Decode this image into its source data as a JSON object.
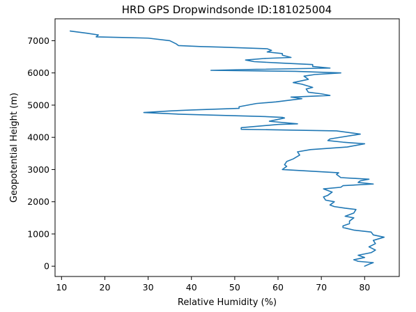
{
  "chart_data": {
    "type": "line",
    "title": "HRD GPS Dropwindsonde ID:181025004",
    "xlabel": "Relative Humidity (%)",
    "ylabel": "Geopotential Height (m)",
    "xlim": [
      8.5,
      88
    ],
    "ylim": [
      -320,
      7680
    ],
    "xticks": [
      10,
      20,
      30,
      40,
      50,
      60,
      70,
      80
    ],
    "yticks": [
      0,
      1000,
      2000,
      3000,
      4000,
      5000,
      6000,
      7000
    ],
    "grid": false,
    "line_color": "#1f77b4",
    "series": [
      {
        "points": [
          [
            80,
            0
          ],
          [
            81,
            60
          ],
          [
            82,
            110
          ],
          [
            78.5,
            150
          ],
          [
            77.5,
            200
          ],
          [
            80,
            270
          ],
          [
            78.5,
            340
          ],
          [
            81.5,
            420
          ],
          [
            82.5,
            500
          ],
          [
            81,
            600
          ],
          [
            82.5,
            700
          ],
          [
            82,
            800
          ],
          [
            84.5,
            900
          ],
          [
            82,
            970
          ],
          [
            81.5,
            1060
          ],
          [
            77.5,
            1120
          ],
          [
            75,
            1200
          ],
          [
            75,
            1250
          ],
          [
            76.5,
            1320
          ],
          [
            76.5,
            1400
          ],
          [
            77.5,
            1500
          ],
          [
            75.5,
            1550
          ],
          [
            77.5,
            1650
          ],
          [
            78,
            1760
          ],
          [
            75.5,
            1800
          ],
          [
            73,
            1850
          ],
          [
            72,
            1900
          ],
          [
            73,
            2000
          ],
          [
            71,
            2050
          ],
          [
            70.5,
            2150
          ],
          [
            71.5,
            2200
          ],
          [
            72.5,
            2300
          ],
          [
            70.5,
            2400
          ],
          [
            74.5,
            2450
          ],
          [
            75,
            2500
          ],
          [
            82,
            2550
          ],
          [
            78.5,
            2600
          ],
          [
            79,
            2650
          ],
          [
            81,
            2700
          ],
          [
            74.5,
            2750
          ],
          [
            73.5,
            2850
          ],
          [
            74,
            2900
          ],
          [
            61,
            3000
          ],
          [
            62,
            3100
          ],
          [
            61.5,
            3150
          ],
          [
            62,
            3250
          ],
          [
            63.5,
            3330
          ],
          [
            65,
            3450
          ],
          [
            64.5,
            3550
          ],
          [
            67.5,
            3620
          ],
          [
            76,
            3700
          ],
          [
            80,
            3800
          ],
          [
            75,
            3850
          ],
          [
            71.5,
            3900
          ],
          [
            72,
            3950
          ],
          [
            79,
            4100
          ],
          [
            73.5,
            4200
          ],
          [
            51.5,
            4250
          ],
          [
            51.5,
            4300
          ],
          [
            60,
            4400
          ],
          [
            64.5,
            4420
          ],
          [
            59.5,
            4480
          ],
          [
            58,
            4500
          ],
          [
            61.5,
            4600
          ],
          [
            61,
            4620
          ],
          [
            56,
            4650
          ],
          [
            37,
            4720
          ],
          [
            29,
            4770
          ],
          [
            35,
            4820
          ],
          [
            40,
            4850
          ],
          [
            51,
            4900
          ],
          [
            51,
            4950
          ],
          [
            55,
            5050
          ],
          [
            59.5,
            5100
          ],
          [
            65.5,
            5200
          ],
          [
            63,
            5250
          ],
          [
            72,
            5300
          ],
          [
            70,
            5350
          ],
          [
            67,
            5400
          ],
          [
            66.5,
            5500
          ],
          [
            68,
            5550
          ],
          [
            65.5,
            5650
          ],
          [
            63.5,
            5700
          ],
          [
            67,
            5800
          ],
          [
            66,
            5900
          ],
          [
            68.5,
            5950
          ],
          [
            74.5,
            6000
          ],
          [
            64,
            6050
          ],
          [
            44.5,
            6080
          ],
          [
            55,
            6110
          ],
          [
            72,
            6150
          ],
          [
            68,
            6200
          ],
          [
            68,
            6260
          ],
          [
            60,
            6310
          ],
          [
            54.5,
            6350
          ],
          [
            52.5,
            6400
          ],
          [
            57,
            6450
          ],
          [
            63,
            6480
          ],
          [
            61,
            6550
          ],
          [
            61,
            6600
          ],
          [
            57.5,
            6650
          ],
          [
            58.5,
            6700
          ],
          [
            57.5,
            6750
          ],
          [
            47,
            6800
          ],
          [
            42,
            6820
          ],
          [
            37,
            6850
          ],
          [
            36.5,
            6900
          ],
          [
            35,
            7000
          ],
          [
            30,
            7080
          ],
          [
            24,
            7100
          ],
          [
            18,
            7120
          ],
          [
            18.5,
            7180
          ],
          [
            16,
            7230
          ],
          [
            12,
            7300
          ]
        ]
      }
    ]
  }
}
